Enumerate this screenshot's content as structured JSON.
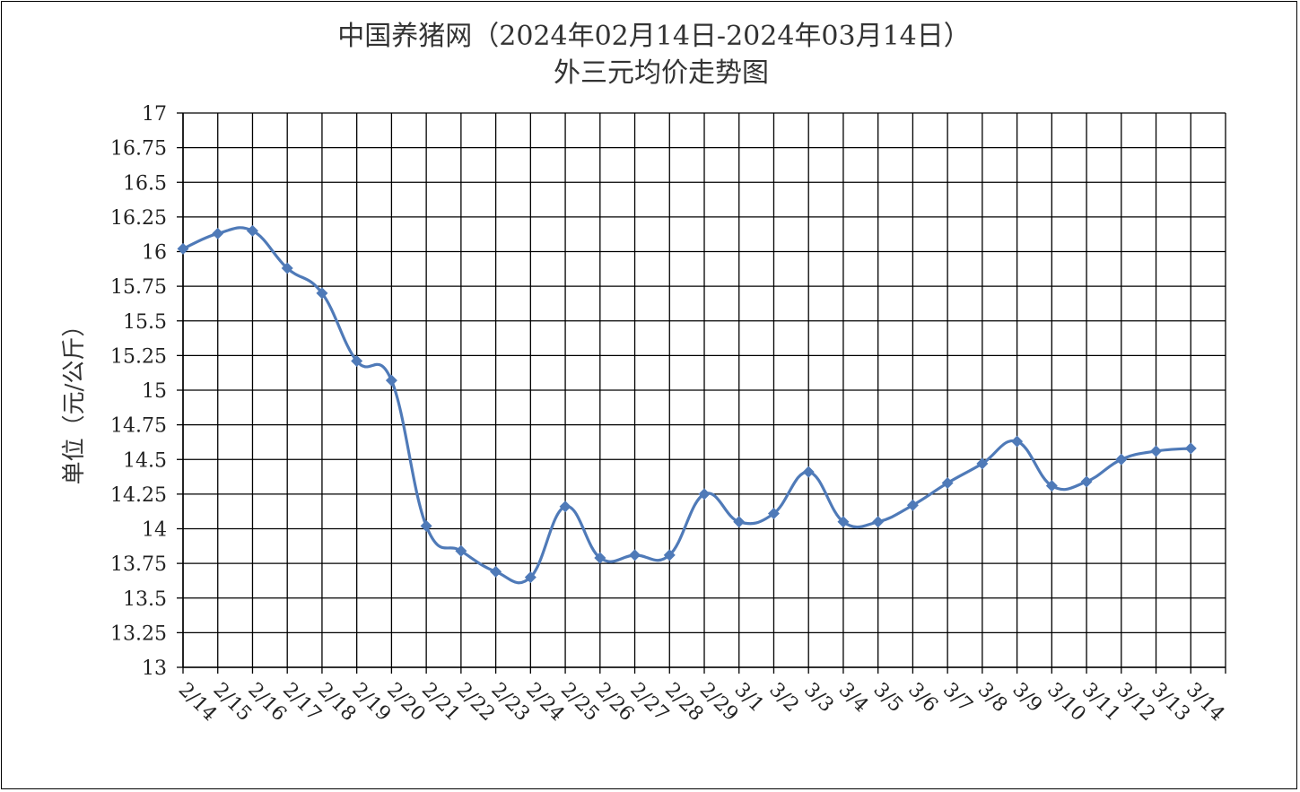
{
  "chart_data": {
    "type": "line",
    "title": "中国养猪网（2024年02月14日-2024年03月14日）",
    "subtitle": "外三元均价走势图",
    "xlabel": "",
    "ylabel": "单位（元/公斤）",
    "ylim": [
      13,
      17
    ],
    "ytick_step": 0.25,
    "yticks": [
      "13",
      "13.25",
      "13.5",
      "13.75",
      "14",
      "14.25",
      "14.5",
      "14.75",
      "15",
      "15.25",
      "15.5",
      "15.75",
      "16",
      "16.25",
      "16.5",
      "16.75",
      "17"
    ],
    "grid": true,
    "legend": "none",
    "categories": [
      "2/14",
      "2/15",
      "2/16",
      "2/17",
      "2/18",
      "2/19",
      "2/20",
      "2/21",
      "2/22",
      "2/23",
      "2/24",
      "2/25",
      "2/26",
      "2/27",
      "2/28",
      "2/29",
      "3/1",
      "3/2",
      "3/3",
      "3/4",
      "3/5",
      "3/6",
      "3/7",
      "3/8",
      "3/9",
      "3/10",
      "3/11",
      "3/12",
      "3/13",
      "3/14"
    ],
    "values": [
      16.02,
      16.13,
      16.15,
      15.88,
      15.7,
      15.21,
      15.07,
      14.02,
      13.84,
      13.69,
      13.65,
      14.16,
      13.79,
      13.81,
      13.81,
      14.25,
      14.05,
      14.11,
      14.41,
      14.05,
      14.05,
      14.17,
      14.33,
      14.47,
      14.63,
      14.31,
      14.34,
      14.5,
      14.56,
      14.58
    ],
    "color": "#4f7ab8"
  }
}
